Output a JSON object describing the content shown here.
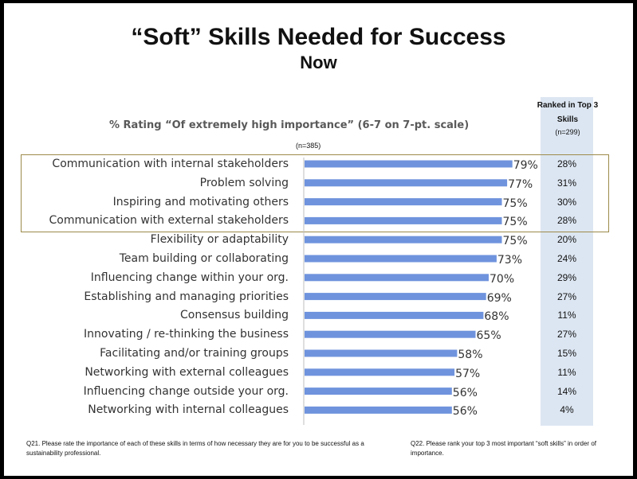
{
  "title": "“Soft” Skills Needed for Success",
  "subtitle": "Now",
  "chart_heading": "% Rating “Of extremely high importance” (6-7 on 7-pt. scale)",
  "sample_note": "(n=385)",
  "rank_header": "Ranked in Top 3 Skills",
  "rank_n": "(n=299)",
  "footnotes": {
    "left": "Q21. Please rate the importance of each of these skills in terms of how necessary they are for you to be successful as a sustainability professional.",
    "right": "Q22. Please rank your top 3 most important “soft skills” in order of importance."
  },
  "colors": {
    "bar": "#6f93dd",
    "rank_panel": "#dce6f2",
    "highlight_border": "#9c8a4a"
  },
  "chart_data": {
    "type": "bar",
    "orientation": "horizontal",
    "categories": [
      "Communication with internal stakeholders",
      "Problem solving",
      "Inspiring and motivating others",
      "Communication with external stakeholders",
      "Flexibility or adaptability",
      "Team building or collaborating",
      "Influencing change within your org.",
      "Establishing and managing priorities",
      "Consensus building",
      "Innovating / re-thinking the business",
      "Facilitating and/or training groups",
      "Networking with external colleagues",
      "Influencing change outside your org.",
      "Networking with internal colleagues"
    ],
    "values": [
      79,
      77,
      75,
      75,
      75,
      73,
      70,
      69,
      68,
      65,
      58,
      57,
      56,
      56
    ],
    "value_labels": [
      "79%",
      "77%",
      "75%",
      "75%",
      "75%",
      "73%",
      "70%",
      "69%",
      "68%",
      "65%",
      "58%",
      "57%",
      "56%",
      "56%"
    ],
    "rank_top3": [
      "28%",
      "31%",
      "30%",
      "28%",
      "20%",
      "24%",
      "29%",
      "27%",
      "11%",
      "27%",
      "15%",
      "11%",
      "14%",
      "4%"
    ],
    "xlim": [
      0,
      100
    ],
    "highlighted_categories": 4,
    "grid": false
  }
}
